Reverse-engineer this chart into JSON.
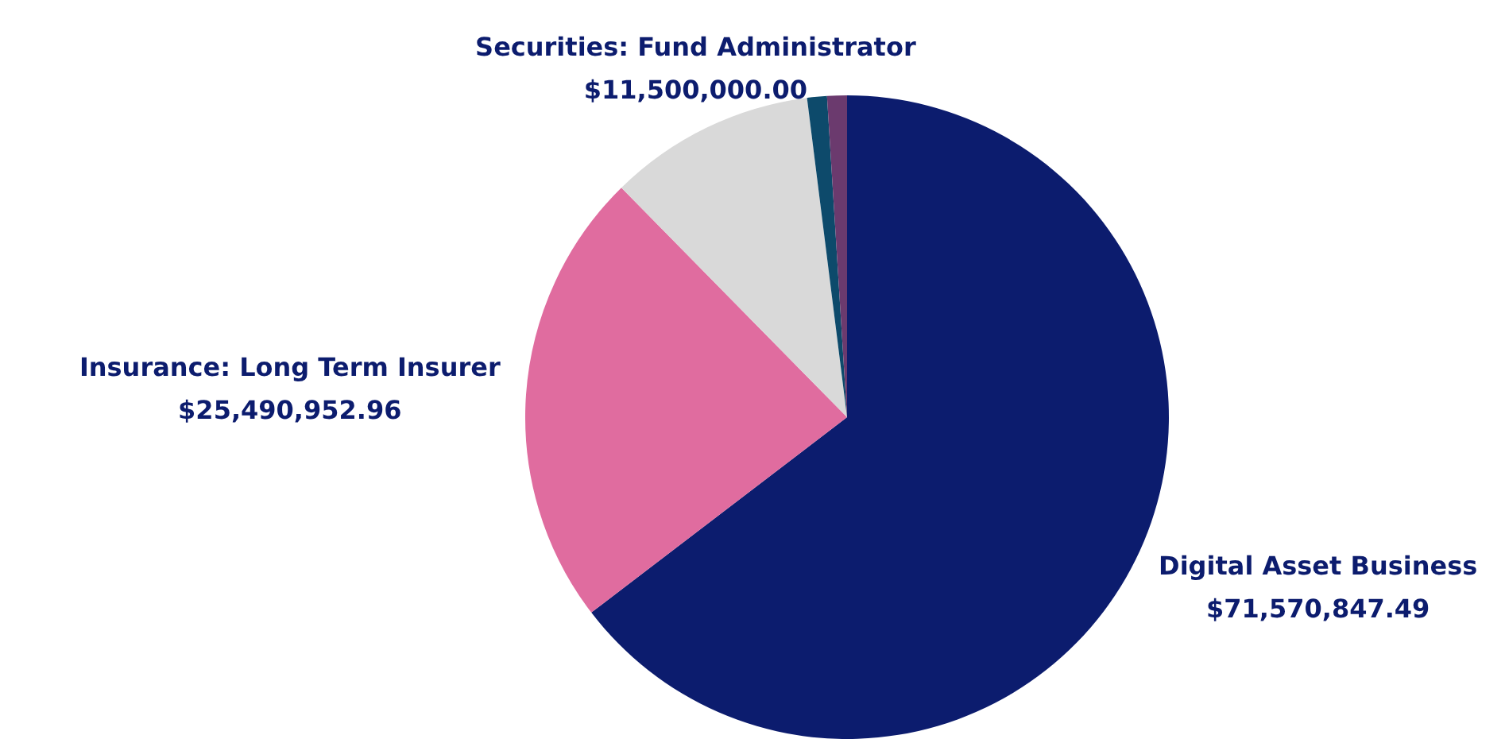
{
  "chart_data": {
    "type": "pie",
    "categories": [
      "Digital Asset Business",
      "Insurance: Long Term Insurer",
      "Securities: Fund Administrator",
      null,
      null
    ],
    "values": [
      71570847.49,
      25490952.96,
      11500000.0,
      1100000,
      1100000
    ],
    "value_labels": [
      "$71,570,847.49",
      "$25,490,952.96",
      "$11,500,000.00",
      null,
      null
    ],
    "colors": [
      "#0c1c6e",
      "#e06c9f",
      "#d9d9d9",
      "#0d4a6b",
      "#6b3a6e"
    ],
    "legend": false
  }
}
